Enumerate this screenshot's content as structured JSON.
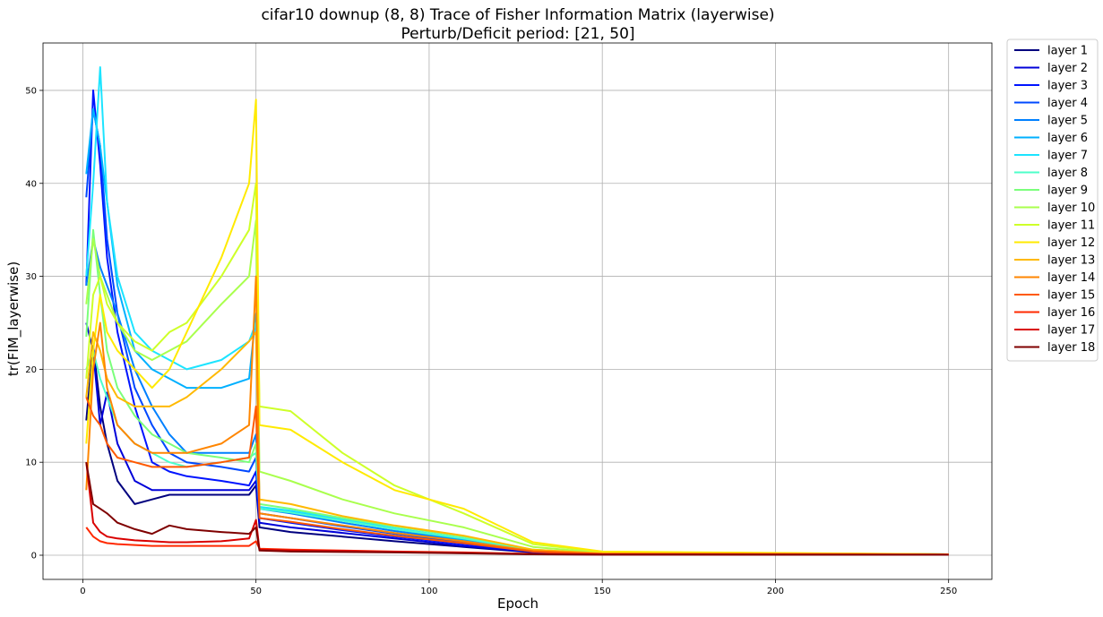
{
  "chart_data": {
    "type": "line",
    "title": "cifar10 downup (8, 8) Trace of Fisher Information Matrix (layerwise)",
    "subtitle": "Perturb/Deficit period: [21, 50]",
    "xlabel": "Epoch",
    "ylabel": "tr(FIM_layerwise)",
    "xlim": [
      -11.5,
      262.5
    ],
    "ylim": [
      -2.6,
      55.1
    ],
    "xticks": [
      0,
      50,
      100,
      150,
      200,
      250
    ],
    "yticks": [
      0,
      10,
      20,
      30,
      40,
      50
    ],
    "grid": true,
    "legend_position": "outside-right",
    "series": [
      {
        "name": "layer 1",
        "color": "#00007f",
        "x": [
          1,
          3,
          5,
          7,
          10,
          15,
          20,
          25,
          30,
          40,
          48,
          50,
          51,
          60,
          75,
          90,
          110,
          130,
          150,
          250
        ],
        "y": [
          14.5,
          22.5,
          16,
          12,
          8,
          5.5,
          6,
          6.5,
          6.5,
          6.5,
          6.5,
          7.5,
          3,
          2.5,
          2,
          1.5,
          0.9,
          0.3,
          0.15,
          0.1
        ]
      },
      {
        "name": "layer 2",
        "color": "#0000d9",
        "x": [
          1,
          3,
          5,
          7,
          10,
          15,
          20,
          25,
          30,
          40,
          48,
          50,
          51,
          60,
          75,
          90,
          110,
          130,
          150,
          250
        ],
        "y": [
          25,
          22,
          14,
          17.5,
          12,
          8,
          7,
          7,
          7,
          7,
          7,
          8,
          3.5,
          3,
          2.4,
          1.8,
          1,
          0.35,
          0.15,
          0.1
        ]
      },
      {
        "name": "layer 3",
        "color": "#0014ff",
        "x": [
          1,
          3,
          5,
          7,
          10,
          15,
          20,
          25,
          30,
          40,
          48,
          50,
          51,
          60,
          75,
          90,
          110,
          130,
          150,
          250
        ],
        "y": [
          29,
          50,
          42,
          32,
          24,
          16,
          10,
          9,
          8.5,
          8,
          7.5,
          9,
          4,
          3.5,
          2.7,
          2,
          1.2,
          0.4,
          0.15,
          0.1
        ]
      },
      {
        "name": "layer 4",
        "color": "#0048ff",
        "x": [
          1,
          3,
          5,
          7,
          10,
          15,
          20,
          25,
          30,
          40,
          48,
          50,
          51,
          60,
          75,
          90,
          110,
          130,
          150,
          250
        ],
        "y": [
          38.5,
          48,
          44,
          34,
          26,
          18,
          14,
          11,
          10,
          9.5,
          9,
          10.5,
          4.5,
          4,
          3.1,
          2.3,
          1.4,
          0.45,
          0.2,
          0.1
        ]
      },
      {
        "name": "layer 5",
        "color": "#0080ff",
        "x": [
          1,
          3,
          5,
          7,
          10,
          15,
          20,
          25,
          30,
          40,
          48,
          50,
          51,
          60,
          75,
          90,
          110,
          130,
          150,
          250
        ],
        "y": [
          29,
          34,
          31,
          29,
          26,
          20,
          16,
          13,
          11,
          11,
          11,
          13,
          5,
          4.5,
          3.5,
          2.6,
          1.6,
          0.5,
          0.2,
          0.1
        ]
      },
      {
        "name": "layer 6",
        "color": "#00b0ff",
        "x": [
          1,
          3,
          5,
          7,
          10,
          15,
          20,
          25,
          30,
          40,
          48,
          50,
          51,
          60,
          75,
          90,
          110,
          130,
          150,
          250
        ],
        "y": [
          41,
          48,
          44,
          38,
          29,
          22,
          20,
          19,
          18,
          18,
          19,
          26,
          5,
          4.7,
          3.8,
          2.8,
          1.7,
          0.55,
          0.2,
          0.1
        ]
      },
      {
        "name": "layer 7",
        "color": "#1ce4ff",
        "x": [
          1,
          3,
          5,
          7,
          10,
          15,
          20,
          25,
          30,
          40,
          48,
          50,
          51,
          60,
          75,
          90,
          110,
          130,
          150,
          250
        ],
        "y": [
          30,
          40,
          52.5,
          38,
          30,
          24,
          22,
          21,
          20,
          21,
          23,
          25,
          5.2,
          4.8,
          3.9,
          2.9,
          1.8,
          0.55,
          0.2,
          0.1
        ]
      },
      {
        "name": "layer 8",
        "color": "#4dffca",
        "x": [
          1,
          3,
          5,
          7,
          10,
          15,
          20,
          25,
          30,
          40,
          48,
          50,
          51,
          60,
          75,
          90,
          110,
          130,
          150,
          250
        ],
        "y": [
          20,
          22,
          19,
          17,
          14,
          12,
          11,
          10,
          9.5,
          10,
          10.5,
          11,
          5,
          4.6,
          3.7,
          2.8,
          1.8,
          0.55,
          0.2,
          0.1
        ]
      },
      {
        "name": "layer 9",
        "color": "#7bff7b",
        "x": [
          1,
          3,
          5,
          7,
          10,
          15,
          20,
          25,
          30,
          40,
          48,
          50,
          51,
          60,
          75,
          90,
          110,
          130,
          150,
          250
        ],
        "y": [
          23.5,
          35,
          28,
          22,
          18,
          15,
          13,
          12,
          11,
          10.5,
          10,
          12,
          5.5,
          5,
          4,
          3.1,
          2,
          0.6,
          0.2,
          0.1
        ]
      },
      {
        "name": "layer 10",
        "color": "#a9ff4d",
        "x": [
          1,
          3,
          5,
          7,
          10,
          15,
          20,
          25,
          30,
          40,
          48,
          50,
          51,
          60,
          75,
          90,
          110,
          130,
          150,
          250
        ],
        "y": [
          27,
          34,
          30,
          28,
          25,
          22,
          21,
          22,
          23,
          27,
          30,
          36,
          9,
          8,
          6,
          4.5,
          3,
          0.9,
          0.25,
          0.1
        ]
      },
      {
        "name": "layer 11",
        "color": "#ceff29",
        "x": [
          1,
          3,
          5,
          7,
          10,
          15,
          20,
          25,
          30,
          40,
          48,
          50,
          51,
          60,
          75,
          90,
          110,
          130,
          150,
          250
        ],
        "y": [
          19,
          28,
          30,
          27,
          25,
          23,
          22,
          24,
          25,
          30,
          35,
          40,
          16,
          15.5,
          11,
          7.5,
          4.5,
          1.2,
          0.35,
          0.1
        ]
      },
      {
        "name": "layer 12",
        "color": "#ffea00",
        "x": [
          1,
          3,
          5,
          7,
          10,
          15,
          20,
          25,
          30,
          40,
          48,
          50,
          51,
          60,
          75,
          90,
          110,
          130,
          150,
          250
        ],
        "y": [
          12,
          22,
          28,
          24,
          22,
          20,
          18,
          20,
          24,
          32,
          40,
          49,
          14,
          13.5,
          10,
          7,
          5,
          1.4,
          0.4,
          0.1
        ]
      },
      {
        "name": "layer 13",
        "color": "#ffb900",
        "x": [
          1,
          3,
          5,
          7,
          10,
          15,
          20,
          25,
          30,
          40,
          48,
          50,
          51,
          60,
          75,
          90,
          110,
          130,
          150,
          250
        ],
        "y": [
          17,
          24,
          22,
          19,
          17,
          16,
          16,
          16,
          17,
          20,
          23,
          24,
          6,
          5.5,
          4.2,
          3.2,
          2.1,
          0.6,
          0.2,
          0.1
        ]
      },
      {
        "name": "layer 14",
        "color": "#ff8600",
        "x": [
          1,
          3,
          5,
          7,
          10,
          15,
          20,
          25,
          30,
          40,
          48,
          50,
          51,
          60,
          75,
          90,
          110,
          130,
          150,
          250
        ],
        "y": [
          7,
          20,
          25,
          18,
          14,
          12,
          11,
          11,
          11,
          12,
          14,
          30,
          4.5,
          4,
          3.2,
          2.4,
          1.5,
          0.45,
          0.15,
          0.1
        ]
      },
      {
        "name": "layer 15",
        "color": "#ff5900",
        "x": [
          1,
          3,
          5,
          7,
          10,
          15,
          20,
          25,
          30,
          40,
          48,
          50,
          51,
          60,
          75,
          90,
          110,
          130,
          150,
          250
        ],
        "y": [
          17,
          15,
          14,
          12,
          10.5,
          10,
          9.5,
          9.5,
          9.5,
          10,
          10.5,
          16,
          4,
          3.6,
          2.8,
          2.1,
          1.3,
          0.4,
          0.15,
          0.1
        ]
      },
      {
        "name": "layer 16",
        "color": "#ff2900",
        "x": [
          1,
          3,
          5,
          7,
          10,
          15,
          20,
          25,
          30,
          40,
          48,
          50,
          51,
          60,
          75,
          90,
          110,
          130,
          150,
          250
        ],
        "y": [
          3,
          2,
          1.5,
          1.3,
          1.2,
          1.1,
          1,
          1,
          1,
          1,
          1,
          1.5,
          0.7,
          0.6,
          0.5,
          0.4,
          0.3,
          0.15,
          0.1,
          0.05
        ]
      },
      {
        "name": "layer 17",
        "color": "#d90000",
        "x": [
          1,
          3,
          5,
          7,
          10,
          15,
          20,
          25,
          30,
          40,
          48,
          50,
          51,
          60,
          75,
          90,
          110,
          130,
          150,
          250
        ],
        "y": [
          10,
          3.5,
          2.5,
          2,
          1.8,
          1.6,
          1.5,
          1.4,
          1.4,
          1.5,
          1.8,
          3.8,
          0.6,
          0.5,
          0.45,
          0.35,
          0.25,
          0.12,
          0.08,
          0.05
        ]
      },
      {
        "name": "layer 18",
        "color": "#7f0000",
        "x": [
          1,
          3,
          5,
          7,
          10,
          15,
          20,
          25,
          30,
          40,
          48,
          50,
          51,
          60,
          75,
          90,
          110,
          130,
          150,
          250
        ],
        "y": [
          10,
          5.5,
          5,
          4.5,
          3.5,
          2.8,
          2.3,
          3.2,
          2.8,
          2.5,
          2.3,
          3,
          0.5,
          0.4,
          0.35,
          0.3,
          0.2,
          0.1,
          0.06,
          0.05
        ]
      }
    ]
  }
}
